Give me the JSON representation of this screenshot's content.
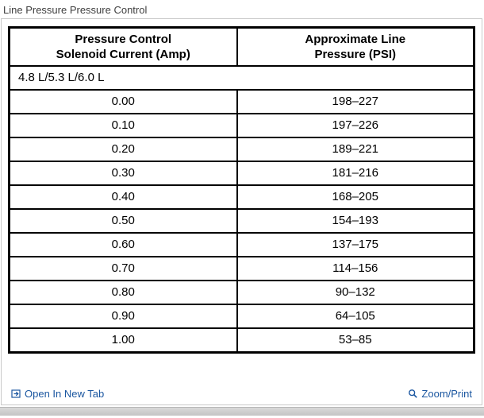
{
  "page": {
    "title": "Line Pressure Pressure Control"
  },
  "table": {
    "headers": [
      "Pressure Control\nSolenoid Current (Amp)",
      "Approximate Line\nPressure (PSI)"
    ],
    "subheader": "4.8 L/5.3 L/6.0 L",
    "rows": [
      [
        "0.00",
        "198–227"
      ],
      [
        "0.10",
        "197–226"
      ],
      [
        "0.20",
        "189–221"
      ],
      [
        "0.30",
        "181–216"
      ],
      [
        "0.40",
        "168–205"
      ],
      [
        "0.50",
        "154–193"
      ],
      [
        "0.60",
        "137–175"
      ],
      [
        "0.70",
        "114–156"
      ],
      [
        "0.80",
        "90–132"
      ],
      [
        "0.90",
        "64–105"
      ],
      [
        "1.00",
        "53–85"
      ]
    ]
  },
  "footer": {
    "open_label": "Open In New Tab",
    "zoom_label": "Zoom/Print"
  },
  "colors": {
    "link": "#1a56a0",
    "table_border": "#000000",
    "panel_border": "#c9c9c9"
  }
}
